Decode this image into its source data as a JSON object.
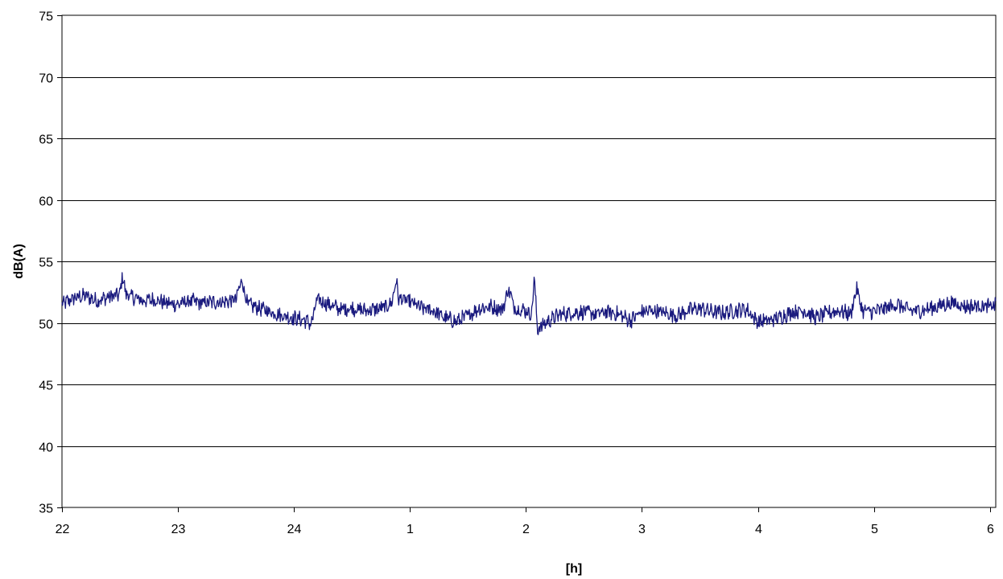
{
  "chart_data": {
    "type": "line",
    "title": "",
    "xlabel": "[h]",
    "ylabel": "dB(A)",
    "ylim": [
      35,
      75
    ],
    "yticks": [
      35,
      40,
      45,
      50,
      55,
      60,
      65,
      70,
      75
    ],
    "xlim": [
      0,
      8.05
    ],
    "xticks": [
      {
        "pos": 0,
        "label": "22"
      },
      {
        "pos": 1,
        "label": "23"
      },
      {
        "pos": 2,
        "label": "24"
      },
      {
        "pos": 3,
        "label": "1"
      },
      {
        "pos": 4,
        "label": "2"
      },
      {
        "pos": 5,
        "label": "3"
      },
      {
        "pos": 6,
        "label": "4"
      },
      {
        "pos": 7,
        "label": "5"
      },
      {
        "pos": 8,
        "label": "6"
      }
    ],
    "grid": true,
    "colors": {
      "series": "#1a1a7e",
      "grid": "#000000"
    },
    "series": [
      {
        "name": "",
        "x": [
          0,
          0.1,
          0.2,
          0.3,
          0.4,
          0.5,
          0.52,
          0.55,
          0.6,
          0.7,
          0.8,
          0.9,
          1.0,
          1.1,
          1.2,
          1.3,
          1.4,
          1.5,
          1.55,
          1.6,
          1.7,
          1.8,
          1.9,
          2.0,
          2.1,
          2.15,
          2.2,
          2.3,
          2.4,
          2.5,
          2.6,
          2.7,
          2.8,
          2.85,
          2.88,
          2.9,
          3.0,
          3.1,
          3.2,
          3.3,
          3.4,
          3.5,
          3.6,
          3.7,
          3.8,
          3.85,
          3.9,
          4.0,
          4.05,
          4.07,
          4.1,
          4.2,
          4.3,
          4.4,
          4.5,
          4.6,
          4.7,
          4.8,
          4.9,
          5.0,
          5.1,
          5.2,
          5.3,
          5.4,
          5.5,
          5.6,
          5.7,
          5.8,
          5.9,
          6.0,
          6.1,
          6.2,
          6.3,
          6.4,
          6.5,
          6.6,
          6.7,
          6.8,
          6.85,
          6.9,
          7.0,
          7.1,
          7.2,
          7.3,
          7.4,
          7.5,
          7.6,
          7.7,
          7.8,
          7.9,
          8.0,
          8.05
        ],
        "y": [
          51.5,
          52.0,
          52.2,
          51.8,
          52.1,
          52.3,
          53.9,
          52.4,
          52.1,
          51.8,
          51.9,
          51.6,
          51.5,
          51.8,
          51.6,
          51.7,
          51.7,
          51.9,
          53.5,
          51.5,
          51.2,
          50.9,
          50.6,
          50.4,
          50.2,
          49.9,
          51.9,
          51.5,
          51.1,
          51.2,
          51.0,
          51.1,
          51.3,
          51.8,
          53.6,
          52.0,
          51.7,
          51.2,
          51.0,
          50.4,
          50.1,
          50.6,
          51.2,
          51.3,
          51.1,
          52.8,
          51.2,
          51.0,
          50.7,
          53.7,
          49.5,
          50.2,
          50.7,
          50.8,
          50.9,
          50.7,
          50.9,
          50.7,
          50.2,
          50.9,
          51.0,
          50.8,
          50.6,
          51.0,
          51.2,
          50.9,
          50.8,
          51.0,
          51.1,
          50.1,
          50.2,
          50.5,
          50.9,
          51.0,
          50.4,
          50.8,
          51.0,
          50.7,
          52.8,
          51.0,
          50.9,
          51.2,
          51.5,
          51.0,
          51.0,
          51.2,
          51.5,
          51.6,
          51.3,
          51.4,
          51.3,
          51.5
        ]
      }
    ]
  }
}
